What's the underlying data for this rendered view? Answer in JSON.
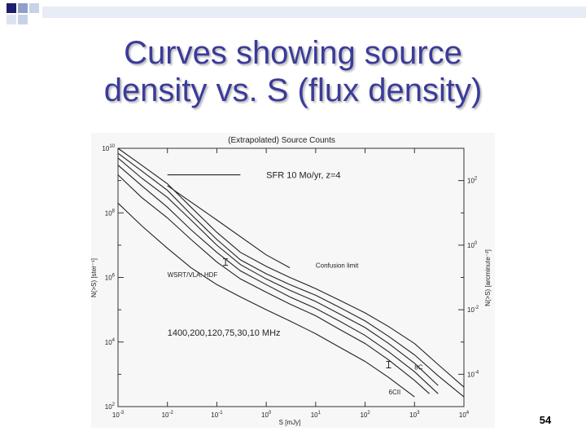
{
  "slide": {
    "title_line1": "Curves showing source",
    "title_line2": "density vs. S (flux density)",
    "page_number": "54",
    "accent_color": "#3b3b9a",
    "decoration_colors": [
      "#1e1e6e",
      "#8fa0c8",
      "#c8d2e6"
    ]
  },
  "chart_data": {
    "type": "line",
    "title": "(Extrapolated) Source Counts",
    "xlabel": "S [mJy]",
    "ylabel": "N(>S) [ster⁻¹]",
    "ylabel_right": "N(>S) [arcminute⁻²]",
    "x_log": true,
    "y_log": true,
    "xlim": [
      0.001,
      10000
    ],
    "ylim": [
      100,
      10000000000
    ],
    "ylim_right": [
      1e-05,
      1000
    ],
    "x_ticks": [
      {
        "value": 0.001,
        "base": "10",
        "exp": "-3"
      },
      {
        "value": 0.01,
        "base": "10",
        "exp": "-2"
      },
      {
        "value": 0.1,
        "base": "10",
        "exp": "-1"
      },
      {
        "value": 1,
        "base": "10",
        "exp": "0"
      },
      {
        "value": 10,
        "base": "10",
        "exp": "1"
      },
      {
        "value": 100,
        "base": "10",
        "exp": "2"
      },
      {
        "value": 1000,
        "base": "10",
        "exp": "3"
      },
      {
        "value": 10000,
        "base": "10",
        "exp": "4"
      }
    ],
    "y_ticks": [
      {
        "value": 100,
        "base": "10",
        "exp": "2"
      },
      {
        "value": 10000,
        "base": "10",
        "exp": "4"
      },
      {
        "value": 1000000,
        "base": "10",
        "exp": "6"
      },
      {
        "value": 100000000,
        "base": "10",
        "exp": "8"
      },
      {
        "value": 10000000000,
        "base": "10",
        "exp": "10"
      }
    ],
    "y_right_ticks": [
      {
        "value": 0.0001,
        "base": "10",
        "exp": "-4"
      },
      {
        "value": 0.01,
        "base": "10",
        "exp": "-2"
      },
      {
        "value": 1,
        "base": "10",
        "exp": "0"
      },
      {
        "value": 100,
        "base": "10",
        "exp": "2"
      }
    ],
    "series": [
      {
        "x": [
          0.001,
          0.003,
          0.01,
          0.03,
          0.1,
          0.3,
          1,
          3,
          10,
          30,
          100,
          300,
          1000,
          3000,
          10000
        ],
        "y": [
          10000000000,
          3000000000,
          800000000,
          150000000,
          25000000,
          6000000,
          2200000,
          1000000,
          450000,
          200000,
          80000,
          30000,
          9000,
          2000,
          400
        ]
      },
      {
        "x": [
          0.001,
          0.003,
          0.01,
          0.03,
          0.1,
          0.3,
          1,
          3,
          10,
          30,
          100,
          300,
          1000,
          3000,
          10000
        ],
        "y": [
          7000000000,
          2000000000,
          500000000,
          90000000,
          15000000,
          3500000,
          1300000,
          600000,
          280000,
          120000,
          45000,
          15000,
          4000,
          900,
          200
        ]
      },
      {
        "x": [
          0.001,
          0.003,
          0.01,
          0.03,
          0.1,
          0.3,
          1,
          3,
          10,
          30,
          100,
          300,
          1000,
          3000
        ],
        "y": [
          5000000000,
          1200000000,
          300000000,
          60000000,
          10000000,
          2500000,
          900000,
          400000,
          180000,
          75000,
          28000,
          9000,
          2200,
          450
        ]
      },
      {
        "x": [
          0.001,
          0.003,
          0.01,
          0.03,
          0.1,
          0.3,
          1,
          3,
          10,
          30,
          100,
          300,
          1000,
          3000
        ],
        "y": [
          3000000000,
          700000000,
          150000000,
          30000000,
          6000000,
          1600000,
          600000,
          250000,
          110000,
          45000,
          16000,
          5000,
          1200,
          250
        ]
      },
      {
        "x": [
          0.001,
          0.003,
          0.01,
          0.03,
          0.1,
          0.3,
          1,
          3,
          10,
          30,
          100,
          300,
          1000,
          2000
        ],
        "y": [
          1500000000,
          300000000,
          70000000,
          15000000,
          3000000,
          900000,
          350000,
          150000,
          65000,
          25000,
          9000,
          2800,
          650,
          250
        ]
      },
      {
        "x": [
          0.001,
          0.003,
          0.01,
          0.03,
          0.1,
          0.3,
          1,
          3,
          10,
          30,
          100,
          300,
          1000
        ],
        "y": [
          200000000,
          40000000,
          8000000,
          2000000,
          600000,
          250000,
          100000,
          45000,
          18000,
          7000,
          2500,
          800,
          200
        ]
      },
      {
        "x": [
          0.01,
          0.3
        ],
        "y": [
          1500000000,
          1500000000
        ]
      },
      {
        "x": [
          0.01,
          0.1,
          1,
          3
        ],
        "y": [
          700000000,
          60000000,
          5000000,
          2000000
        ]
      }
    ],
    "annotations": [
      {
        "text": "SFR 10 Mo/yr, z=4",
        "x": 1,
        "y": 1500000000
      },
      {
        "text": "Confusion limit",
        "x": 10,
        "y": 2500000
      },
      {
        "text": "WSRT/VLA: HDF",
        "x": 0.01,
        "y": 1300000
      },
      {
        "text": "1400,200,120,75,30,10 MHz",
        "x": 0.01,
        "y": 20000
      },
      {
        "text": "8C",
        "x": 1000,
        "y": 1800
      },
      {
        "text": "6CII",
        "x": 300,
        "y": 300
      }
    ],
    "markers": [
      {
        "x": 0.15,
        "y": 3000000
      },
      {
        "x": 300,
        "y": 2000
      }
    ],
    "grid": false,
    "legend": "none"
  }
}
